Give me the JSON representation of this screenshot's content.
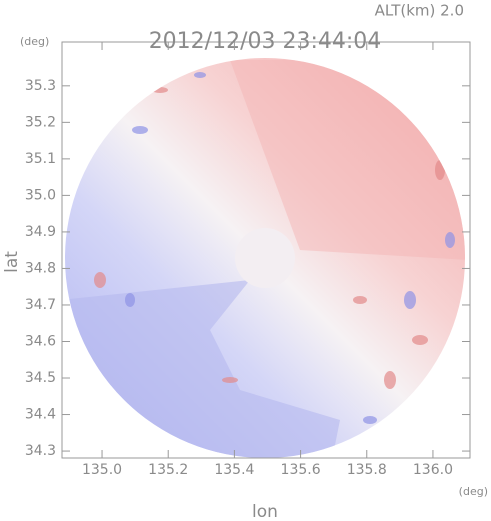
{
  "chart_data": {
    "type": "radar-map",
    "title": "2012/12/03 23:44:04",
    "altitude_label": "ALT(km) 2.0",
    "xlabel": "lon",
    "ylabel": "lat",
    "x_unit": "(deg)",
    "y_unit": "(deg)",
    "xlim": [
      134.879,
      136.112
    ],
    "ylim": [
      34.281,
      35.42
    ],
    "xticks": [
      {
        "value": 135.0,
        "label": "135.0"
      },
      135.2,
      135.4,
      135.6,
      135.8,
      {
        "value": 136.0,
        "label": "136.0"
      }
    ],
    "yticks": [
      34.3,
      34.4,
      34.5,
      34.6,
      34.7,
      34.8,
      34.9,
      {
        "value": 35.0,
        "label": "35.0"
      },
      35.1,
      35.2,
      35.3
    ]
  }
}
